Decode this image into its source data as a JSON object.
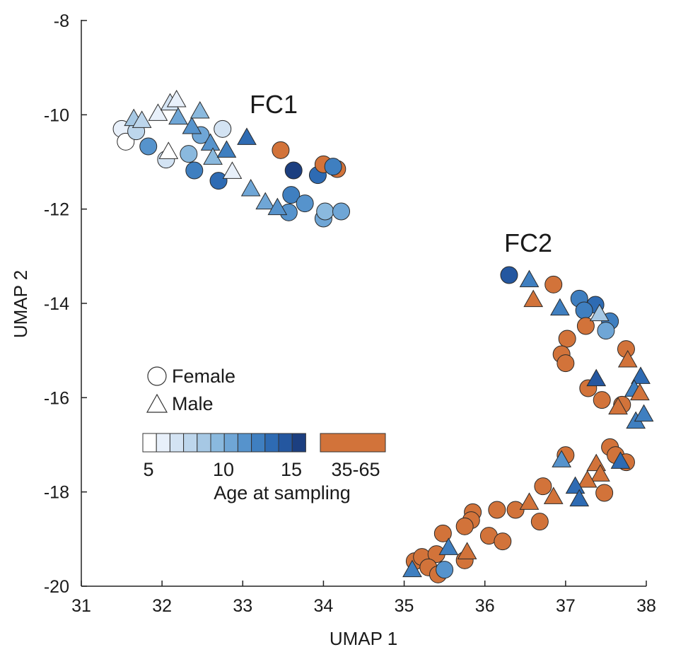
{
  "chart_data": {
    "type": "scatter",
    "title": "",
    "xlabel": "UMAP 1",
    "ylabel": "UMAP 2",
    "xlim": [
      31,
      38
    ],
    "ylim": [
      -20,
      -8
    ],
    "xticks": [
      31,
      32,
      33,
      34,
      35,
      36,
      37,
      38
    ],
    "yticks": [
      -20,
      -18,
      -16,
      -14,
      -12,
      -10,
      -8
    ],
    "annotations": [
      {
        "text": "FC1",
        "x": 33.4,
        "y": -9.8
      },
      {
        "text": "FC2",
        "x": 36.55,
        "y": -12.8
      }
    ],
    "legend": {
      "placement": "center-left",
      "shapes": [
        {
          "shape": "circle",
          "label": "Female"
        },
        {
          "shape": "triangle",
          "label": "Male"
        }
      ],
      "colorbar_title": "Age at sampling",
      "young_ticks": [
        "5",
        "10",
        "15"
      ],
      "old_label": "35-65",
      "young_colors": [
        "#ffffff",
        "#e8f0fa",
        "#d3e3f3",
        "#bdd6ec",
        "#a6c8e4",
        "#8ab9de",
        "#6fa6d6",
        "#5693cc",
        "#3f7fc0",
        "#2e6bb3",
        "#2457a0",
        "#1c3f80"
      ],
      "old_color": "#d2733a"
    },
    "series": [
      {
        "name": "Female",
        "marker": "circle",
        "points": [
          {
            "x": 31.5,
            "y": -10.3,
            "c": "#e8f0fa"
          },
          {
            "x": 31.55,
            "y": -10.57,
            "c": "#ffffff"
          },
          {
            "x": 31.68,
            "y": -10.35,
            "c": "#bdd6ec"
          },
          {
            "x": 31.83,
            "y": -10.67,
            "c": "#5693cc"
          },
          {
            "x": 32.05,
            "y": -10.95,
            "c": "#d3e3f3"
          },
          {
            "x": 32.33,
            "y": -10.83,
            "c": "#8ab9de"
          },
          {
            "x": 32.4,
            "y": -11.18,
            "c": "#3f7fc0"
          },
          {
            "x": 32.48,
            "y": -10.43,
            "c": "#6fa6d6"
          },
          {
            "x": 32.75,
            "y": -10.3,
            "c": "#d3e3f3"
          },
          {
            "x": 32.7,
            "y": -11.4,
            "c": "#2e6bb3"
          },
          {
            "x": 33.47,
            "y": -10.75,
            "c": "#d2733a"
          },
          {
            "x": 33.63,
            "y": -11.18,
            "c": "#1c3f80"
          },
          {
            "x": 33.6,
            "y": -11.7,
            "c": "#3f7fc0"
          },
          {
            "x": 33.77,
            "y": -11.88,
            "c": "#5693cc"
          },
          {
            "x": 33.57,
            "y": -12.07,
            "c": "#5693cc"
          },
          {
            "x": 33.93,
            "y": -11.28,
            "c": "#2e6bb3"
          },
          {
            "x": 34.0,
            "y": -11.05,
            "c": "#d2733a"
          },
          {
            "x": 34.17,
            "y": -11.15,
            "c": "#d2733a"
          },
          {
            "x": 34.12,
            "y": -11.1,
            "c": "#3f7fc0"
          },
          {
            "x": 34.0,
            "y": -12.2,
            "c": "#6fa6d6"
          },
          {
            "x": 34.02,
            "y": -12.05,
            "c": "#8ab9de"
          },
          {
            "x": 34.22,
            "y": -12.05,
            "c": "#6fa6d6"
          },
          {
            "x": 36.3,
            "y": -13.4,
            "c": "#2457a0"
          },
          {
            "x": 36.85,
            "y": -13.6,
            "c": "#d2733a"
          },
          {
            "x": 37.17,
            "y": -13.9,
            "c": "#3f7fc0"
          },
          {
            "x": 37.37,
            "y": -14.03,
            "c": "#2e6bb3"
          },
          {
            "x": 37.23,
            "y": -14.15,
            "c": "#3f7fc0"
          },
          {
            "x": 37.55,
            "y": -14.38,
            "c": "#3f7fc0"
          },
          {
            "x": 37.5,
            "y": -14.58,
            "c": "#6fa6d6"
          },
          {
            "x": 37.25,
            "y": -14.48,
            "c": "#d2733a"
          },
          {
            "x": 37.02,
            "y": -14.75,
            "c": "#d2733a"
          },
          {
            "x": 36.95,
            "y": -15.08,
            "c": "#d2733a"
          },
          {
            "x": 37.0,
            "y": -15.27,
            "c": "#d2733a"
          },
          {
            "x": 37.75,
            "y": -14.97,
            "c": "#d2733a"
          },
          {
            "x": 37.28,
            "y": -15.8,
            "c": "#d2733a"
          },
          {
            "x": 37.45,
            "y": -16.05,
            "c": "#d2733a"
          },
          {
            "x": 37.7,
            "y": -16.15,
            "c": "#d2733a"
          },
          {
            "x": 37.55,
            "y": -17.05,
            "c": "#d2733a"
          },
          {
            "x": 37.62,
            "y": -17.22,
            "c": "#d2733a"
          },
          {
            "x": 37.75,
            "y": -17.37,
            "c": "#d2733a"
          },
          {
            "x": 37.0,
            "y": -17.22,
            "c": "#d2733a"
          },
          {
            "x": 36.72,
            "y": -17.88,
            "c": "#d2733a"
          },
          {
            "x": 37.48,
            "y": -18.02,
            "c": "#d2733a"
          },
          {
            "x": 36.15,
            "y": -18.38,
            "c": "#d2733a"
          },
          {
            "x": 36.38,
            "y": -18.38,
            "c": "#d2733a"
          },
          {
            "x": 36.68,
            "y": -18.63,
            "c": "#d2733a"
          },
          {
            "x": 35.85,
            "y": -18.43,
            "c": "#d2733a"
          },
          {
            "x": 35.83,
            "y": -18.6,
            "c": "#d2733a"
          },
          {
            "x": 35.75,
            "y": -18.73,
            "c": "#d2733a"
          },
          {
            "x": 36.05,
            "y": -18.93,
            "c": "#d2733a"
          },
          {
            "x": 36.22,
            "y": -19.05,
            "c": "#d2733a"
          },
          {
            "x": 35.48,
            "y": -18.88,
            "c": "#d2733a"
          },
          {
            "x": 35.75,
            "y": -19.45,
            "c": "#d2733a"
          },
          {
            "x": 35.13,
            "y": -19.47,
            "c": "#d2733a"
          },
          {
            "x": 35.22,
            "y": -19.38,
            "c": "#d2733a"
          },
          {
            "x": 35.4,
            "y": -19.32,
            "c": "#d2733a"
          },
          {
            "x": 35.3,
            "y": -19.6,
            "c": "#d2733a"
          },
          {
            "x": 35.42,
            "y": -19.75,
            "c": "#d2733a"
          },
          {
            "x": 35.5,
            "y": -19.65,
            "c": "#5693cc"
          }
        ]
      },
      {
        "name": "Male",
        "marker": "triangle",
        "points": [
          {
            "x": 31.65,
            "y": -10.08,
            "c": "#a6c8e4"
          },
          {
            "x": 31.75,
            "y": -10.12,
            "c": "#bdd6ec"
          },
          {
            "x": 31.95,
            "y": -9.97,
            "c": "#e8f0fa"
          },
          {
            "x": 32.1,
            "y": -9.75,
            "c": "#d3e3f3"
          },
          {
            "x": 32.18,
            "y": -9.68,
            "c": "#e8f0fa"
          },
          {
            "x": 32.2,
            "y": -10.05,
            "c": "#6fa6d6"
          },
          {
            "x": 32.08,
            "y": -10.78,
            "c": "#ffffff"
          },
          {
            "x": 32.37,
            "y": -10.25,
            "c": "#5693cc"
          },
          {
            "x": 32.47,
            "y": -9.92,
            "c": "#8ab9de"
          },
          {
            "x": 32.6,
            "y": -10.6,
            "c": "#5693cc"
          },
          {
            "x": 32.63,
            "y": -10.9,
            "c": "#8ab9de"
          },
          {
            "x": 32.8,
            "y": -10.75,
            "c": "#3f7fc0"
          },
          {
            "x": 32.87,
            "y": -11.2,
            "c": "#e8f0fa"
          },
          {
            "x": 33.05,
            "y": -10.48,
            "c": "#2e6bb3"
          },
          {
            "x": 33.1,
            "y": -11.57,
            "c": "#6fa6d6"
          },
          {
            "x": 33.28,
            "y": -11.85,
            "c": "#6fa6d6"
          },
          {
            "x": 33.43,
            "y": -11.97,
            "c": "#5693cc"
          },
          {
            "x": 36.55,
            "y": -13.5,
            "c": "#3f7fc0"
          },
          {
            "x": 36.6,
            "y": -13.92,
            "c": "#d2733a"
          },
          {
            "x": 36.93,
            "y": -14.1,
            "c": "#3f7fc0"
          },
          {
            "x": 37.42,
            "y": -14.22,
            "c": "#a6c8e4"
          },
          {
            "x": 37.77,
            "y": -15.2,
            "c": "#d2733a"
          },
          {
            "x": 37.38,
            "y": -15.6,
            "c": "#2457a0"
          },
          {
            "x": 37.93,
            "y": -15.55,
            "c": "#2e6bb3"
          },
          {
            "x": 37.85,
            "y": -15.82,
            "c": "#3f7fc0"
          },
          {
            "x": 37.92,
            "y": -15.9,
            "c": "#d2733a"
          },
          {
            "x": 37.65,
            "y": -16.2,
            "c": "#d2733a"
          },
          {
            "x": 37.87,
            "y": -16.5,
            "c": "#3f7fc0"
          },
          {
            "x": 37.97,
            "y": -16.35,
            "c": "#3f7fc0"
          },
          {
            "x": 36.95,
            "y": -17.32,
            "c": "#5693cc"
          },
          {
            "x": 37.38,
            "y": -17.4,
            "c": "#d2733a"
          },
          {
            "x": 37.43,
            "y": -17.62,
            "c": "#d2733a"
          },
          {
            "x": 37.27,
            "y": -17.75,
            "c": "#d2733a"
          },
          {
            "x": 37.68,
            "y": -17.35,
            "c": "#2e6bb3"
          },
          {
            "x": 37.12,
            "y": -17.88,
            "c": "#2e6bb3"
          },
          {
            "x": 37.17,
            "y": -18.15,
            "c": "#2e6bb3"
          },
          {
            "x": 36.85,
            "y": -18.1,
            "c": "#d2733a"
          },
          {
            "x": 36.55,
            "y": -18.22,
            "c": "#d2733a"
          },
          {
            "x": 35.78,
            "y": -19.27,
            "c": "#d2733a"
          },
          {
            "x": 35.55,
            "y": -19.18,
            "c": "#3f7fc0"
          },
          {
            "x": 35.1,
            "y": -19.65,
            "c": "#3f7fc0"
          }
        ]
      }
    ]
  }
}
